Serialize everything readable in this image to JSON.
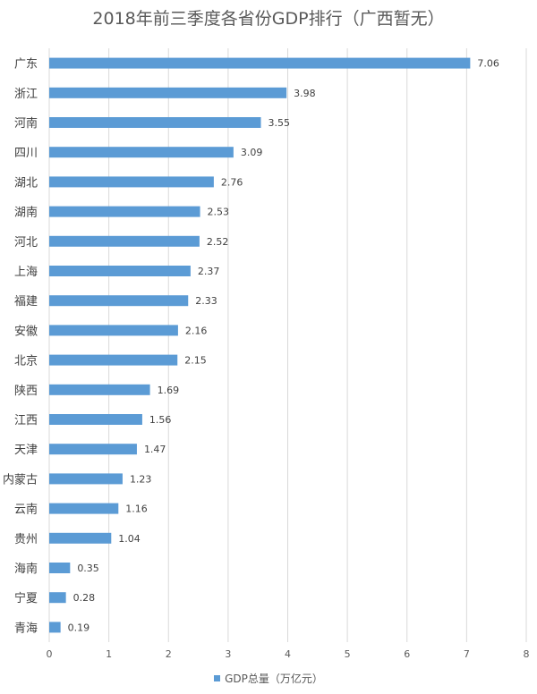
{
  "chart_data": {
    "type": "bar",
    "orientation": "horizontal",
    "title": "2018年前三季度各省份GDP排行（广西暂无）",
    "categories": [
      "广东",
      "浙江",
      "河南",
      "四川",
      "湖北",
      "湖南",
      "河北",
      "上海",
      "福建",
      "安徽",
      "北京",
      "陕西",
      "江西",
      "天津",
      "内蒙古",
      "云南",
      "贵州",
      "海南",
      "宁夏",
      "青海"
    ],
    "series": [
      {
        "name": "GDP总量（万亿元）",
        "values": [
          7.06,
          3.98,
          3.55,
          3.09,
          2.76,
          2.53,
          2.52,
          2.37,
          2.33,
          2.16,
          2.15,
          1.69,
          1.56,
          1.47,
          1.23,
          1.16,
          1.04,
          0.35,
          0.28,
          0.19
        ]
      }
    ],
    "xlim": [
      0,
      8
    ],
    "x_ticks": [
      0,
      1,
      2,
      3,
      4,
      5,
      6,
      7,
      8
    ],
    "grid": true,
    "legend_position": "bottom",
    "bar_color": "#5b9bd5"
  }
}
